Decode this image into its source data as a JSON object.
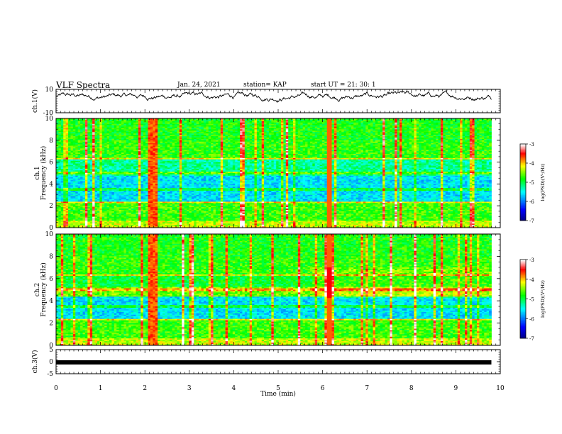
{
  "header": {
    "title": "VLF Spectra",
    "date": "Jan. 24, 2021",
    "station": "station= KAP",
    "start": "start  UT  =  21: 30: 1"
  },
  "chart_data": {
    "type": "heatmap",
    "xlabel": "Time  (min)",
    "xlim": [
      0,
      10
    ],
    "xticks": [
      "0",
      "1",
      "2",
      "3",
      "4",
      "5",
      "6",
      "7",
      "8",
      "9",
      "10"
    ],
    "panels": [
      {
        "id": "ch1v",
        "type": "line",
        "ylabel": "ch.1(V)",
        "ylim": [
          -10,
          10
        ],
        "yticks": [
          "10",
          "-10"
        ],
        "mean": 4,
        "noise": 3.5
      },
      {
        "id": "ch1spec",
        "type": "heatmap",
        "ylabel_top": "ch.1",
        "ylabel": "Frequency  (kHz)",
        "ylim": [
          0,
          10
        ],
        "yticks": [
          "0",
          "2",
          "4",
          "6",
          "8",
          "10"
        ],
        "data_end_min": 9.8,
        "colorbar": {
          "label": "log(PSD)(V²/Hz)",
          "range": [
            -7,
            -3
          ],
          "ticks": [
            "-3",
            "-4",
            "-5",
            "-6",
            "-7"
          ]
        }
      },
      {
        "id": "ch2spec",
        "type": "heatmap",
        "ylabel_top": "ch.2",
        "ylabel": "Frequency  (kHz)",
        "ylim": [
          0,
          10
        ],
        "yticks": [
          "0",
          "2",
          "4",
          "6",
          "8",
          "10"
        ],
        "data_end_min": 9.8,
        "colorbar": {
          "label": "log(PSD)(V²/Hz)",
          "range": [
            -7,
            -3
          ],
          "ticks": [
            "-3",
            "-4",
            "-5",
            "-6",
            "-7"
          ]
        }
      },
      {
        "id": "ch3v",
        "type": "line",
        "ylabel": "ch.3(V)",
        "ylim": [
          -5,
          5
        ],
        "yticks": [
          "5",
          "0",
          "-5"
        ],
        "level": -0.3
      }
    ],
    "colors": {
      "line": "#000000",
      "colormap": [
        "#00007f",
        "#0000ff",
        "#00ffff",
        "#00ff00",
        "#ffff00",
        "#ff0000",
        "#ffffff"
      ]
    }
  }
}
